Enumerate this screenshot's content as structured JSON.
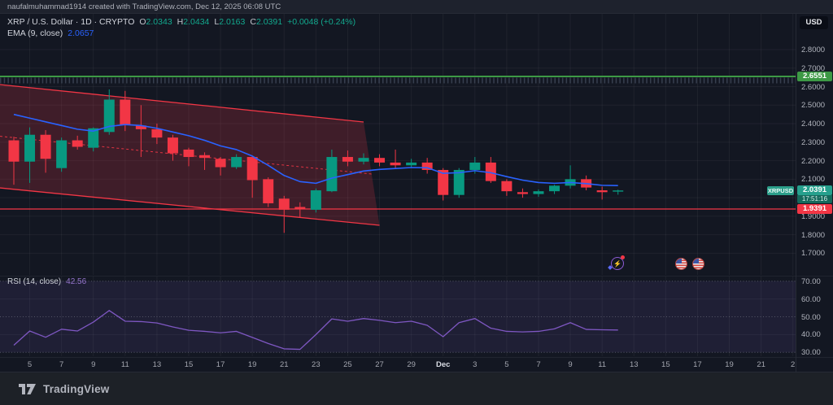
{
  "top_bar": {
    "attribution": "naufalmuhammad1914 created with TradingView.com, Dec 12, 2025 06:08 UTC"
  },
  "legend": {
    "title": "XRP / U.S. Dollar · 1D · CRYPTO",
    "o_label": "O",
    "o_value": "2.0343",
    "h_label": "H",
    "h_value": "2.0434",
    "l_label": "L",
    "l_value": "2.0163",
    "c_label": "C",
    "c_value": "2.0391",
    "change": "+0.0048 (+0.24%)",
    "ema_label": "EMA (9, close)",
    "ema_value": "2.0657",
    "rsi_label": "RSI (14, close)",
    "rsi_value": "42.56"
  },
  "price_axis": {
    "currency_button": "USD",
    "labels": [
      "2.8000",
      "2.7000",
      "2.6000",
      "2.5000",
      "2.4000",
      "2.3000",
      "2.2000",
      "2.1000",
      "1.9000",
      "1.8000",
      "1.7000"
    ],
    "label_prices": [
      2.8,
      2.7,
      2.6,
      2.5,
      2.4,
      2.3,
      2.2,
      2.1,
      1.9,
      1.8,
      1.7
    ],
    "resistance_badge": "2.6551",
    "support_badge": "1.9391",
    "price_badge": "2.0391",
    "countdown": "17:51:16",
    "symbol_badge": "XRPUSD",
    "rsi_labels": [
      "70.00",
      "60.00",
      "50.00",
      "40.00",
      "30.00"
    ],
    "rsi_label_values": [
      70,
      60,
      50,
      40,
      30
    ]
  },
  "time_axis": {
    "labels": [
      "5",
      "7",
      "9",
      "11",
      "13",
      "15",
      "17",
      "19",
      "21",
      "23",
      "25",
      "27",
      "29",
      "Dec",
      "3",
      "5",
      "7",
      "9",
      "11",
      "13",
      "15",
      "17",
      "19",
      "21",
      "2"
    ]
  },
  "event_icons": {
    "crypto_event": "lightning-event-icon",
    "us_events": [
      "us-flag-event-icon",
      "us-flag-event-icon"
    ]
  },
  "footer": {
    "brand": "TradingView"
  },
  "chart_data": {
    "type": "candlestick",
    "symbol": "XRPUSD",
    "interval": "1D",
    "title": "XRP / U.S. Dollar · 1D · CRYPTO",
    "price_axis_range": [
      1.7,
      2.8
    ],
    "rsi_axis_range": [
      30,
      70
    ],
    "grid": true,
    "dates": [
      "Nov 4",
      "Nov 5",
      "Nov 6",
      "Nov 7",
      "Nov 8",
      "Nov 9",
      "Nov 10",
      "Nov 11",
      "Nov 12",
      "Nov 13",
      "Nov 14",
      "Nov 15",
      "Nov 16",
      "Nov 17",
      "Nov 18",
      "Nov 19",
      "Nov 20",
      "Nov 21",
      "Nov 22",
      "Nov 23",
      "Nov 24",
      "Nov 25",
      "Nov 26",
      "Nov 27",
      "Nov 28",
      "Nov 29",
      "Nov 30",
      "Dec 1",
      "Dec 2",
      "Dec 3",
      "Dec 4",
      "Dec 5",
      "Dec 6",
      "Dec 7",
      "Dec 8",
      "Dec 9",
      "Dec 10",
      "Dec 11",
      "Dec 12"
    ],
    "candles": [
      {
        "o": 2.31,
        "h": 2.33,
        "l": 2.07,
        "c": 2.195
      },
      {
        "o": 2.195,
        "h": 2.38,
        "l": 2.08,
        "c": 2.34
      },
      {
        "o": 2.34,
        "h": 2.365,
        "l": 2.135,
        "c": 2.21
      },
      {
        "o": 2.16,
        "h": 2.325,
        "l": 2.14,
        "c": 2.31
      },
      {
        "o": 2.31,
        "h": 2.335,
        "l": 2.26,
        "c": 2.275
      },
      {
        "o": 2.27,
        "h": 2.38,
        "l": 2.25,
        "c": 2.375
      },
      {
        "o": 2.355,
        "h": 2.585,
        "l": 2.34,
        "c": 2.53
      },
      {
        "o": 2.53,
        "h": 2.577,
        "l": 2.36,
        "c": 2.395
      },
      {
        "o": 2.39,
        "h": 2.5,
        "l": 2.22,
        "c": 2.37
      },
      {
        "o": 2.37,
        "h": 2.4,
        "l": 2.29,
        "c": 2.325
      },
      {
        "o": 2.325,
        "h": 2.34,
        "l": 2.2,
        "c": 2.24
      },
      {
        "o": 2.26,
        "h": 2.27,
        "l": 2.17,
        "c": 2.22
      },
      {
        "o": 2.23,
        "h": 2.245,
        "l": 2.15,
        "c": 2.215
      },
      {
        "o": 2.21,
        "h": 2.22,
        "l": 2.12,
        "c": 2.165
      },
      {
        "o": 2.165,
        "h": 2.235,
        "l": 2.155,
        "c": 2.22
      },
      {
        "o": 2.22,
        "h": 2.225,
        "l": 2.0,
        "c": 2.095
      },
      {
        "o": 2.1,
        "h": 2.11,
        "l": 1.95,
        "c": 1.97
      },
      {
        "o": 1.995,
        "h": 2.01,
        "l": 1.81,
        "c": 1.935
      },
      {
        "o": 1.95,
        "h": 1.975,
        "l": 1.895,
        "c": 1.94
      },
      {
        "o": 1.935,
        "h": 2.05,
        "l": 1.92,
        "c": 2.04
      },
      {
        "o": 2.035,
        "h": 2.26,
        "l": 2.03,
        "c": 2.22
      },
      {
        "o": 2.22,
        "h": 2.255,
        "l": 2.17,
        "c": 2.195
      },
      {
        "o": 2.195,
        "h": 2.24,
        "l": 2.18,
        "c": 2.215
      },
      {
        "o": 2.215,
        "h": 2.235,
        "l": 2.17,
        "c": 2.19
      },
      {
        "o": 2.19,
        "h": 2.26,
        "l": 2.155,
        "c": 2.175
      },
      {
        "o": 2.175,
        "h": 2.21,
        "l": 2.16,
        "c": 2.19
      },
      {
        "o": 2.19,
        "h": 2.215,
        "l": 2.13,
        "c": 2.15
      },
      {
        "o": 2.15,
        "h": 2.16,
        "l": 1.985,
        "c": 2.015
      },
      {
        "o": 2.015,
        "h": 2.16,
        "l": 2.0,
        "c": 2.15
      },
      {
        "o": 2.15,
        "h": 2.22,
        "l": 2.13,
        "c": 2.19
      },
      {
        "o": 2.19,
        "h": 2.22,
        "l": 2.08,
        "c": 2.09
      },
      {
        "o": 2.09,
        "h": 2.1,
        "l": 2.01,
        "c": 2.035
      },
      {
        "o": 2.03,
        "h": 2.05,
        "l": 2.0,
        "c": 2.02
      },
      {
        "o": 2.02,
        "h": 2.045,
        "l": 2.005,
        "c": 2.035
      },
      {
        "o": 2.035,
        "h": 2.07,
        "l": 2.02,
        "c": 2.065
      },
      {
        "o": 2.065,
        "h": 2.175,
        "l": 2.05,
        "c": 2.1
      },
      {
        "o": 2.1,
        "h": 2.12,
        "l": 2.04,
        "c": 2.055
      },
      {
        "o": 2.04,
        "h": 2.06,
        "l": 1.99,
        "c": 2.03
      },
      {
        "o": 2.0343,
        "h": 2.0434,
        "l": 2.0163,
        "c": 2.0391
      }
    ],
    "ema9": [
      2.45,
      2.43,
      2.41,
      2.39,
      2.37,
      2.36,
      2.385,
      2.395,
      2.39,
      2.375,
      2.355,
      2.335,
      2.31,
      2.28,
      2.26,
      2.225,
      2.175,
      2.12,
      2.087,
      2.078,
      2.106,
      2.125,
      2.144,
      2.153,
      2.158,
      2.163,
      2.162,
      2.132,
      2.135,
      2.146,
      2.135,
      2.114,
      2.095,
      2.082,
      2.078,
      2.082,
      2.076,
      2.067,
      2.0657
    ],
    "rsi14": [
      34,
      42,
      38.5,
      43,
      42,
      47,
      53.5,
      47.5,
      47.3,
      46.5,
      44.3,
      42.4,
      41.8,
      41,
      41.8,
      38.4,
      35,
      32,
      31.7,
      40,
      48.8,
      47.5,
      49,
      48,
      46.7,
      47.5,
      45.2,
      38.8,
      46.7,
      49,
      43.6,
      41.8,
      41.5,
      41.8,
      43.2,
      46.7,
      42.9,
      42.7,
      42.56
    ],
    "rsi_guides": [
      70,
      50,
      30
    ],
    "levels": [
      {
        "price": 2.6551,
        "color": "#3d9945",
        "style": "solid",
        "width": 2
      },
      {
        "price": 1.9391,
        "color": "#f23645",
        "style": "solid",
        "width": 1.3
      },
      {
        "price": 2.633,
        "color": "#3e4757",
        "style": "hatched",
        "width": 7
      }
    ],
    "channel": {
      "color": "#f23645",
      "fill": "rgba(242,54,69,0.2)",
      "upper": {
        "from": {
          "i": -0.87,
          "p": 2.611
        },
        "to": {
          "i": 22.0,
          "p": 2.409
        }
      },
      "lower": {
        "from": {
          "i": -0.87,
          "p": 2.053
        },
        "to": {
          "i": 23.0,
          "p": 1.851
        }
      },
      "median": {
        "from": {
          "i": -0.87,
          "p": 2.332
        },
        "to": {
          "i": 22.5,
          "p": 2.128
        },
        "style": "dashed"
      }
    },
    "colors": {
      "up": "#089981",
      "down": "#f23645",
      "ema": "#2962ff",
      "rsi": "#7e57c2",
      "grid": "rgba(255,255,255,0.05)",
      "rsi_band": "rgba(126,87,194,0.12)"
    }
  }
}
